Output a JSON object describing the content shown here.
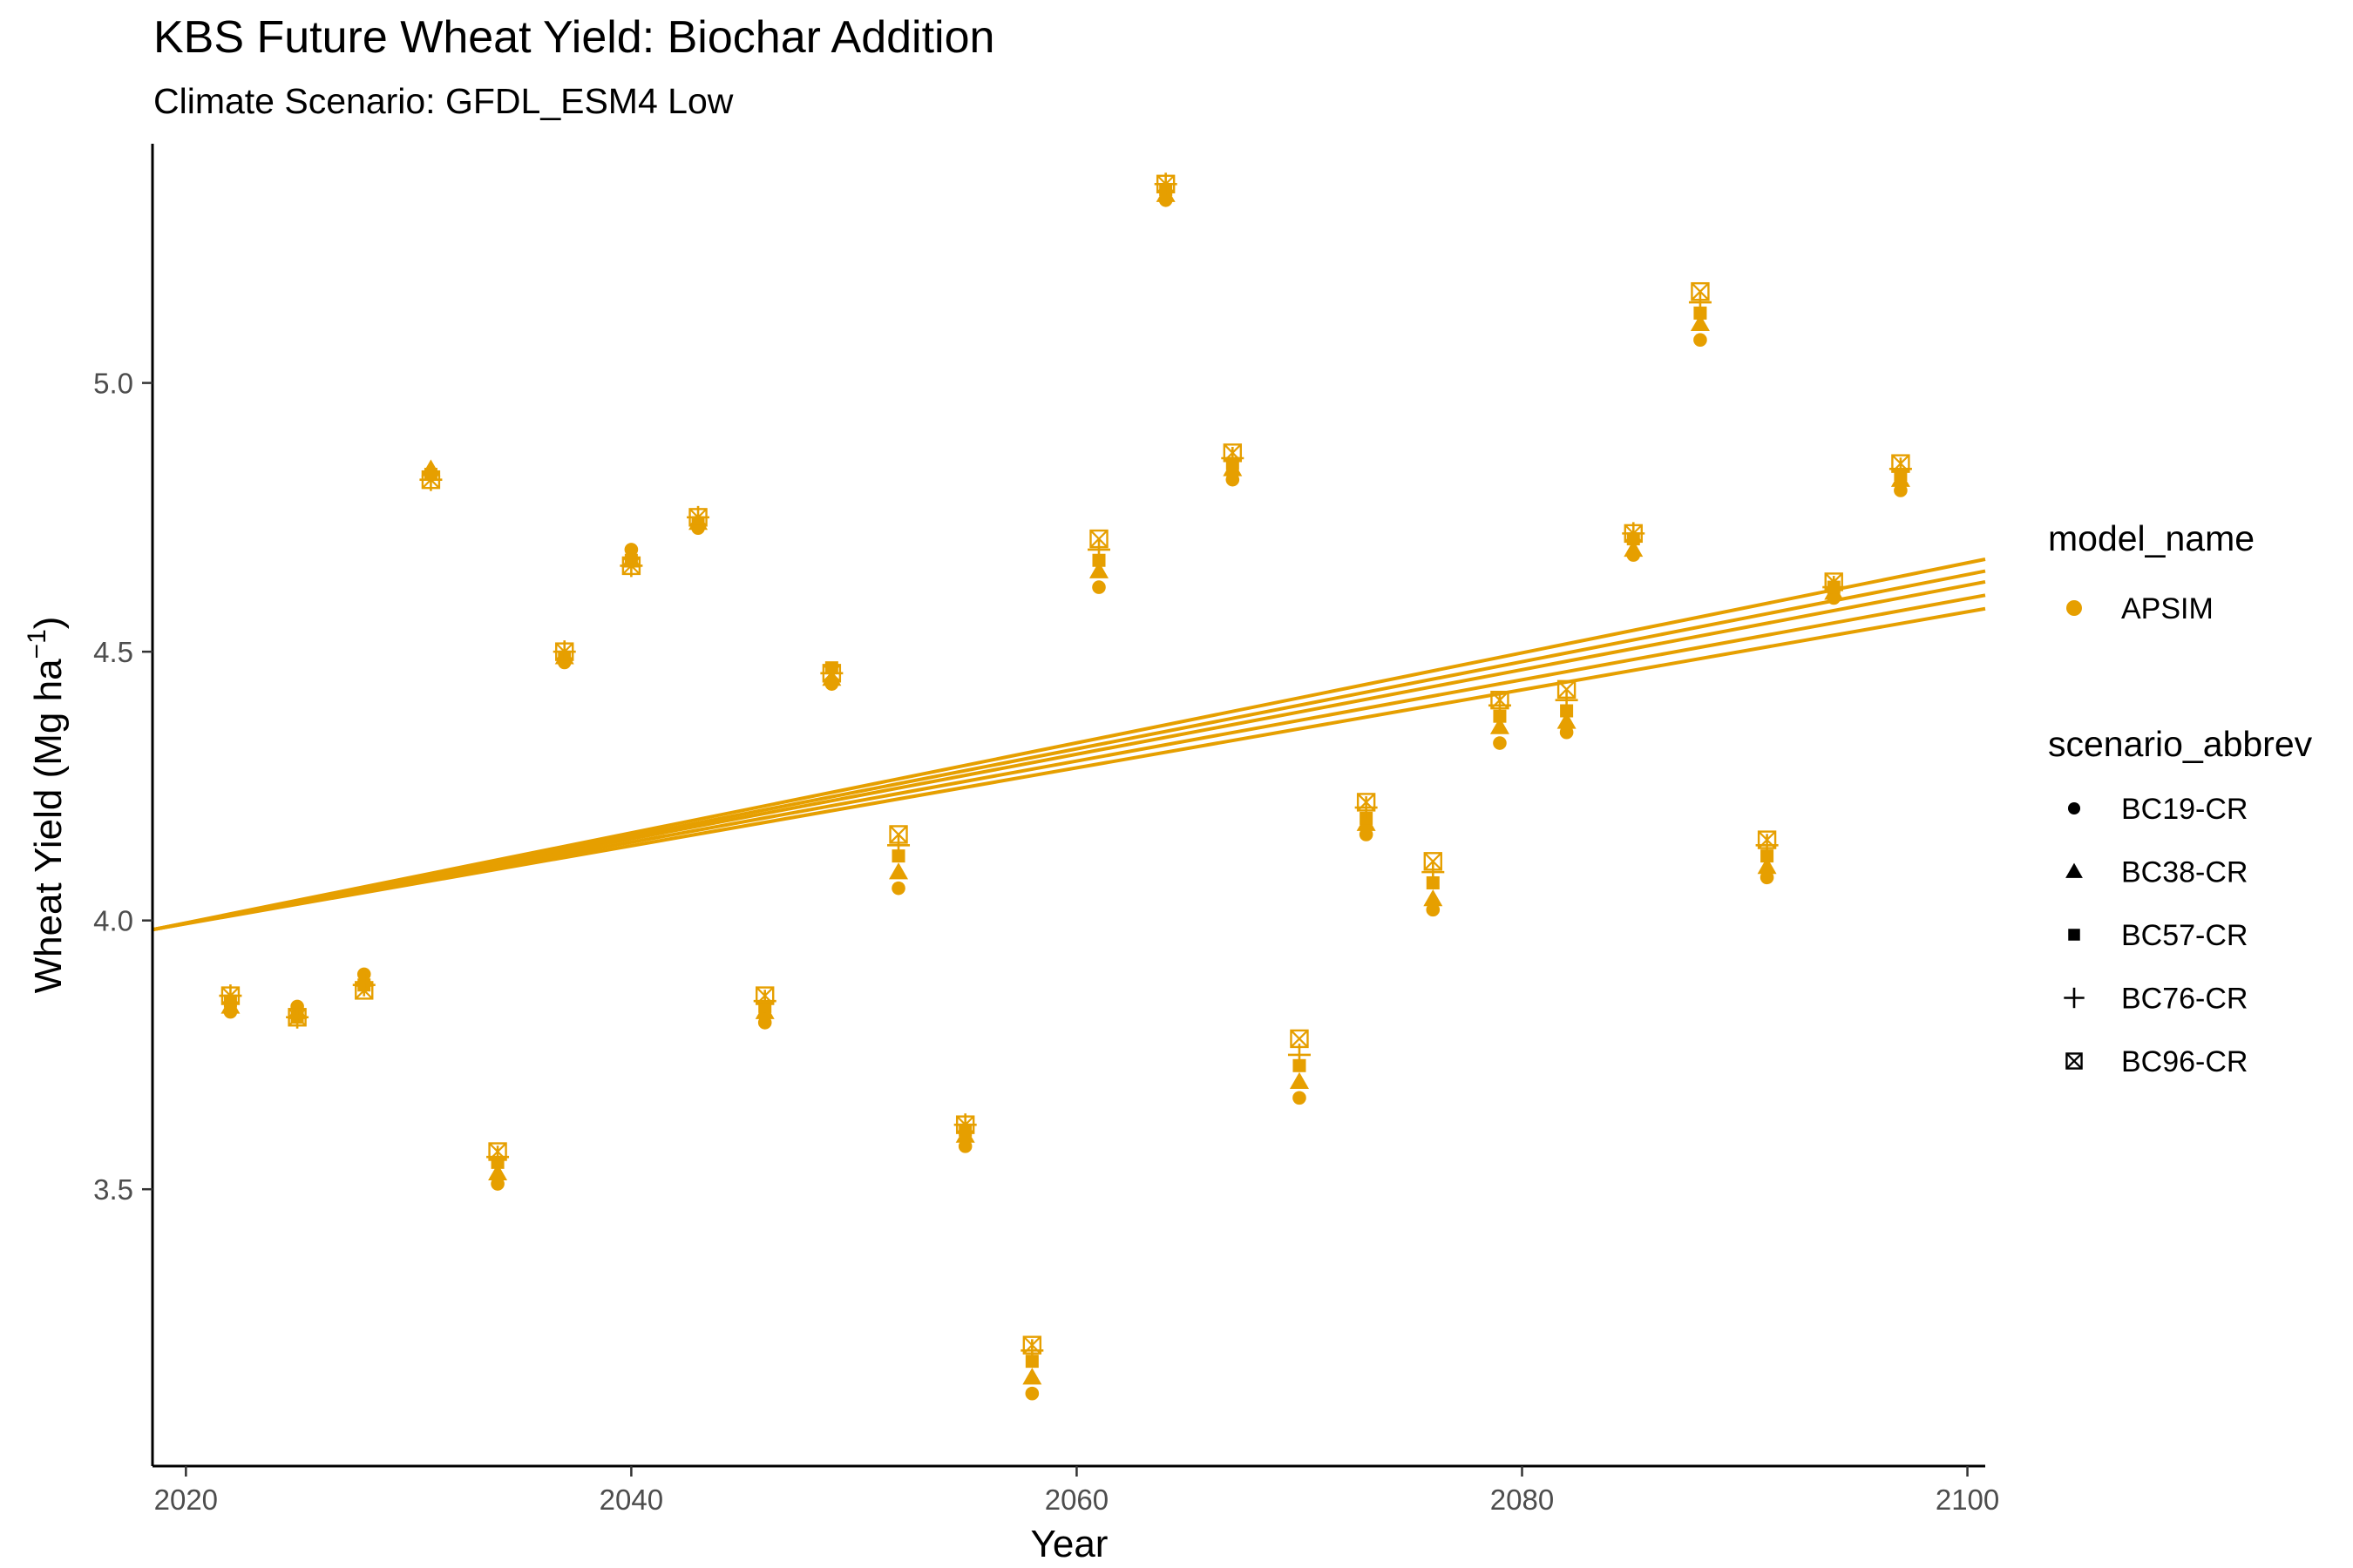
{
  "chart_data": {
    "type": "scatter",
    "title": "KBS Future Wheat Yield: Biochar Addition",
    "subtitle": "Climate Scenario: GFDL_ESM4 Low",
    "xlabel": "Year",
    "ylabel_main": "Wheat Yield (Mg ha",
    "ylabel_sup": "−1",
    "ylabel_end": ")",
    "xlim": [
      2018.5,
      2100.8
    ],
    "ylim": [
      2.985,
      5.445
    ],
    "x_ticks": [
      2020,
      2040,
      2060,
      2080,
      2100
    ],
    "y_ticks": [
      3.5,
      4.0,
      4.5,
      5.0
    ],
    "x_tick_labels": [
      "2020",
      "2040",
      "2060",
      "2080",
      "2100"
    ],
    "y_tick_labels": [
      "3.5",
      "4.0",
      "4.5",
      "5.0"
    ],
    "grid": false,
    "color": "#E69F00",
    "legend": {
      "placement": "right",
      "model_title": "model_name",
      "model_entries": [
        "APSIM"
      ],
      "scenario_title": "scenario_abbrev",
      "scenario_entries": [
        "BC19-CR",
        "BC38-CR",
        "BC57-CR",
        "BC76-CR",
        "BC96-CR"
      ]
    },
    "x": [
      2022,
      2025,
      2028,
      2031,
      2034,
      2037,
      2040,
      2043,
      2046,
      2049,
      2052,
      2055,
      2058,
      2061,
      2064,
      2067,
      2070,
      2073,
      2076,
      2079,
      2082,
      2085,
      2088,
      2091,
      2094,
      2097
    ],
    "series": [
      {
        "name": "BC19-CR",
        "shape": "circle",
        "values": [
          3.83,
          3.84,
          3.9,
          4.83,
          3.51,
          4.48,
          4.69,
          4.73,
          3.81,
          4.44,
          4.06,
          3.58,
          3.12,
          4.62,
          5.34,
          4.82,
          3.67,
          4.16,
          4.02,
          4.33,
          4.35,
          4.68,
          5.08,
          4.08,
          4.6,
          4.8
        ]
      },
      {
        "name": "BC38-CR",
        "shape": "triangle",
        "values": [
          3.84,
          3.83,
          3.89,
          4.84,
          3.53,
          4.49,
          4.67,
          4.74,
          3.83,
          4.45,
          4.09,
          3.6,
          3.15,
          4.65,
          5.35,
          4.84,
          3.7,
          4.18,
          4.04,
          4.36,
          4.37,
          4.69,
          5.11,
          4.1,
          4.61,
          4.82
        ]
      },
      {
        "name": "BC57-CR",
        "shape": "square",
        "values": [
          3.85,
          3.82,
          3.88,
          4.83,
          3.55,
          4.49,
          4.67,
          4.74,
          3.84,
          4.47,
          4.12,
          3.61,
          3.18,
          4.67,
          5.36,
          4.85,
          3.73,
          4.19,
          4.07,
          4.38,
          4.39,
          4.71,
          5.13,
          4.12,
          4.62,
          4.83
        ]
      },
      {
        "name": "BC76-CR",
        "shape": "plus",
        "values": [
          3.86,
          3.82,
          3.88,
          4.82,
          3.56,
          4.5,
          4.66,
          4.75,
          3.85,
          4.46,
          4.14,
          3.62,
          3.2,
          4.69,
          5.37,
          4.86,
          3.75,
          4.21,
          4.09,
          4.4,
          4.41,
          4.72,
          5.15,
          4.14,
          4.62,
          4.84
        ]
      },
      {
        "name": "BC96-CR",
        "shape": "boxx",
        "values": [
          3.86,
          3.82,
          3.87,
          4.82,
          3.57,
          4.5,
          4.66,
          4.75,
          3.86,
          4.46,
          4.16,
          3.62,
          3.21,
          4.71,
          5.37,
          4.87,
          3.78,
          4.22,
          4.11,
          4.41,
          4.43,
          4.72,
          5.17,
          4.15,
          4.63,
          4.85
        ]
      }
    ],
    "trend_lines": [
      {
        "name": "BC19-CR",
        "x": [
          2018.5,
          2100.8
        ],
        "y": [
          3.983,
          4.58
        ]
      },
      {
        "name": "BC38-CR",
        "x": [
          2018.5,
          2100.8
        ],
        "y": [
          3.983,
          4.605
        ]
      },
      {
        "name": "BC57-CR",
        "x": [
          2018.5,
          2100.8
        ],
        "y": [
          3.983,
          4.63
        ]
      },
      {
        "name": "BC76-CR",
        "x": [
          2018.5,
          2100.8
        ],
        "y": [
          3.983,
          4.65
        ]
      },
      {
        "name": "BC96-CR",
        "x": [
          2018.5,
          2100.8
        ],
        "y": [
          3.983,
          4.672
        ]
      }
    ]
  }
}
